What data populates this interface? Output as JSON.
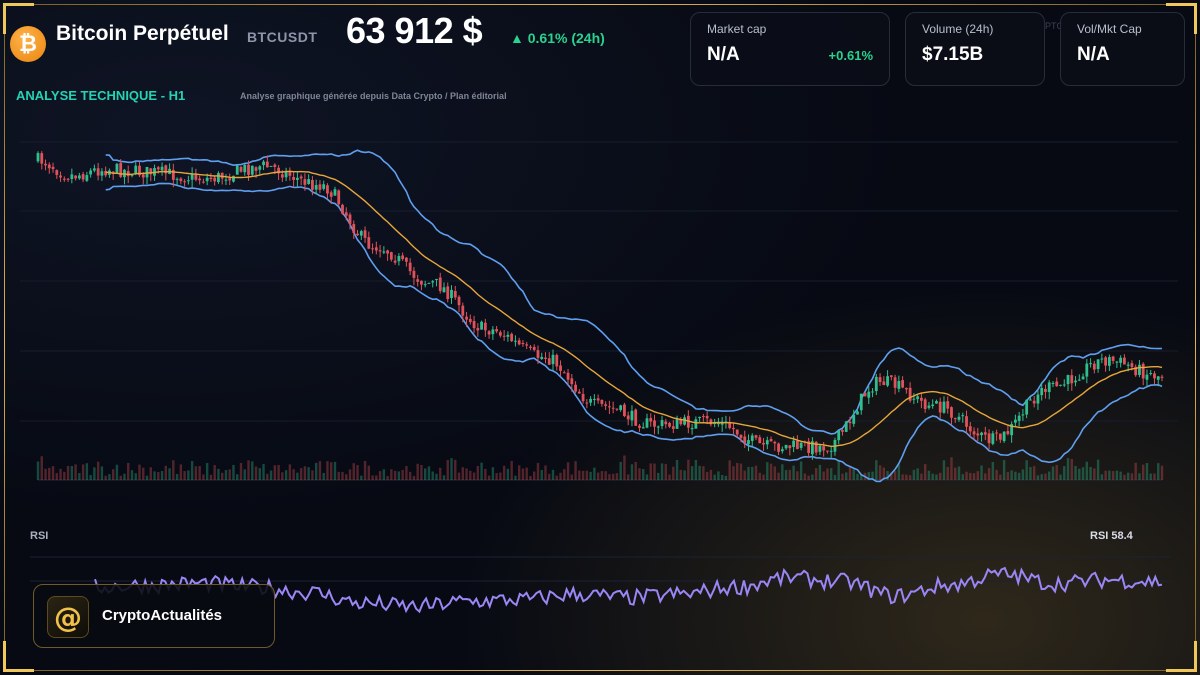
{
  "header": {
    "coin_glyph": "₿",
    "title": "Bitcoin Perpétuel",
    "symbol": "BTCUSDT",
    "price": "63 912 $",
    "change": "▲ 0.61% (24h)"
  },
  "cards": [
    {
      "label": "Market cap",
      "value": "N/A",
      "change": "+0.61%"
    },
    {
      "label": "Volume (24h)",
      "value": "$7.15B"
    },
    {
      "label": "Vol/Mkt Cap",
      "value": "N/A"
    }
  ],
  "ghost_text": "PTC",
  "section": {
    "title": "ANALYSE TECHNIQUE - H1",
    "subtitle": "Analyse graphique générée depuis Data Crypto / Plan éditorial"
  },
  "rsi": {
    "label": "RSI",
    "value_label": "RSI 58.4"
  },
  "brand": {
    "glyph": "@",
    "name": "CryptoActualités"
  },
  "colors": {
    "up": "#2fbf8f",
    "down": "#e0525a",
    "bollinger": "#5f9ff0",
    "ma": "#e6a63a",
    "rsi": "#9b86f5",
    "accent_gold": "#e0b64e",
    "section_teal": "#25d3b3"
  },
  "chart_data": {
    "type": "candlestick",
    "timeframe": "H1",
    "indicators": [
      "bollinger_bands",
      "moving_average",
      "volume",
      "rsi"
    ],
    "price_anchors": {
      "x": [
        0,
        3,
        6,
        10,
        15,
        20,
        25,
        30,
        35,
        40,
        45,
        50,
        55,
        60,
        65,
        70,
        75,
        80,
        85,
        90,
        95,
        100
      ],
      "y": [
        0.0,
        0.05,
        0.03,
        0.04,
        0.06,
        0.02,
        0.08,
        0.28,
        0.4,
        0.55,
        0.64,
        0.8,
        0.86,
        0.85,
        0.93,
        0.93,
        0.72,
        0.8,
        0.91,
        0.74,
        0.65,
        0.7
      ]
    },
    "rsi_last": 58.4,
    "rsi_anchors": {
      "x": [
        0,
        5,
        10,
        15,
        20,
        25,
        30,
        35,
        40,
        45,
        50,
        55,
        60,
        65,
        70,
        75,
        80,
        85,
        90,
        95,
        100
      ],
      "y": [
        55,
        56,
        57,
        55,
        52,
        46,
        44,
        47,
        48,
        51,
        49,
        51,
        55,
        60,
        58,
        50,
        56,
        62,
        57,
        59,
        58
      ]
    },
    "ylim": [
      0,
      1
    ]
  }
}
